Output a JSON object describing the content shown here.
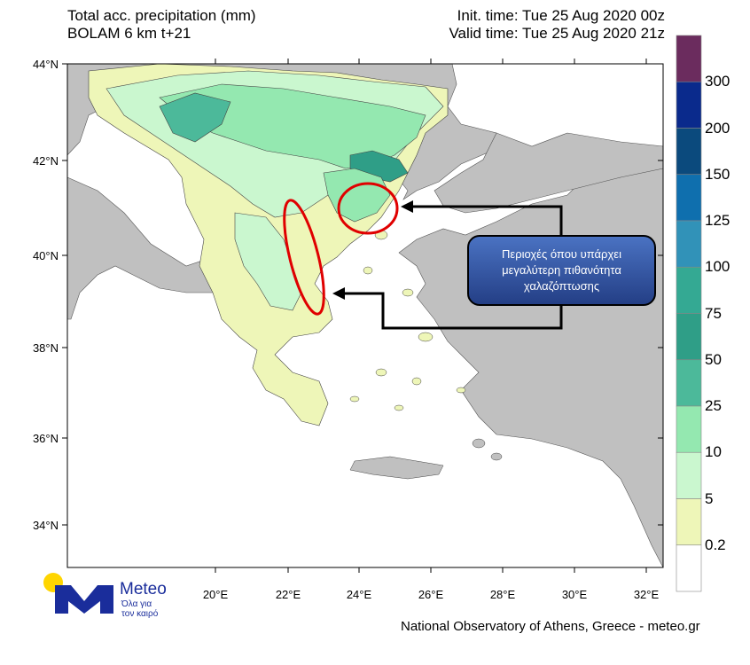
{
  "header": {
    "title_line1": "Total acc. precipitation (mm)",
    "title_line2": "BOLAM 6 km t+21",
    "init_time": "Init. time: Tue 25 Aug 2020 00z",
    "valid_time": "Valid time: Tue 25 Aug 2020 21z"
  },
  "axes": {
    "lat_labels": [
      "44°N",
      "42°N",
      "40°N",
      "38°N",
      "36°N",
      "34°N"
    ],
    "lon_labels": [
      "20°E",
      "22°E",
      "24°E",
      "26°E",
      "28°E",
      "30°E",
      "32°E"
    ]
  },
  "colorbar": {
    "labels": [
      "300",
      "200",
      "150",
      "125",
      "100",
      "75",
      "50",
      "25",
      "10",
      "5",
      "0.2"
    ],
    "colors": [
      "#6b2c5e",
      "#0a2a8c",
      "#0b4a7d",
      "#0f6fae",
      "#3192b8",
      "#34a993",
      "#2f9e87",
      "#4cb99a",
      "#94e8b0",
      "#caf7cf",
      "#eef6b8",
      "#ffffff"
    ]
  },
  "annotation": {
    "line1": "Περιοχές όπου υπάρχει",
    "line2": "μεγαλύτερη πιθανότητα",
    "line3": "χαλαζόπτωσης"
  },
  "logo": {
    "name": "Meteo",
    "tagline1": "Όλα για",
    "tagline2": "τον καιρό"
  },
  "footer": "National Observatory of Athens, Greece - meteo.gr"
}
